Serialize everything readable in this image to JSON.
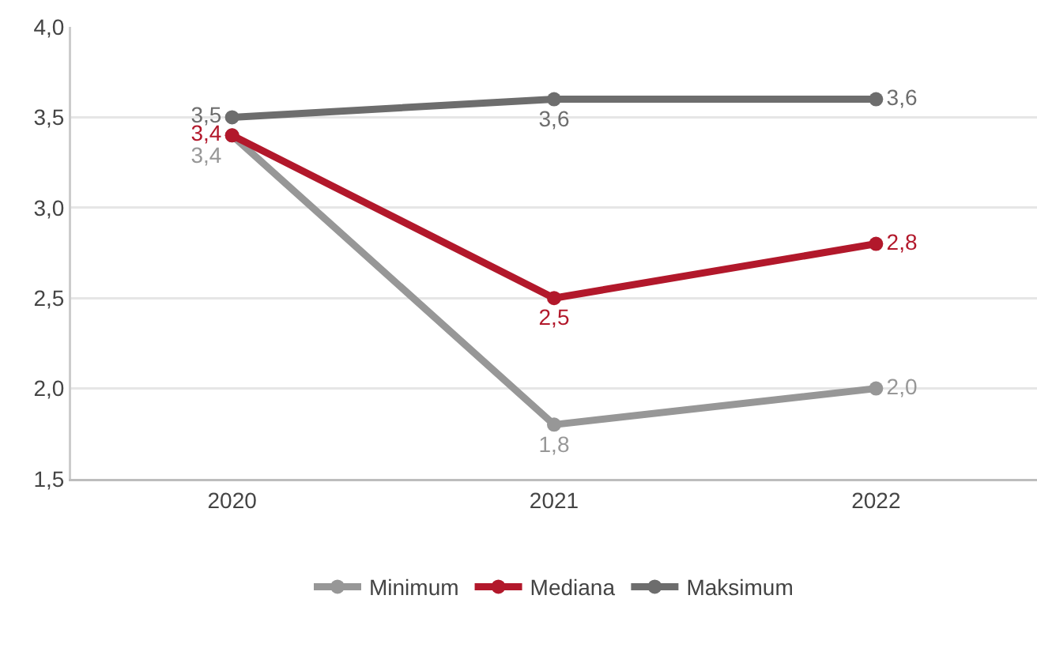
{
  "chart_data": {
    "type": "line",
    "categories": [
      "2020",
      "2021",
      "2022"
    ],
    "series": [
      {
        "name": "Minimum",
        "color": "#979797",
        "values": [
          3.4,
          1.8,
          2.0
        ],
        "value_labels": [
          "3,4",
          "1,8",
          "2,0"
        ]
      },
      {
        "name": "Mediana",
        "color": "#b2182b",
        "values": [
          3.4,
          2.5,
          2.8
        ],
        "value_labels": [
          "3,4",
          "2,5",
          "2,8"
        ]
      },
      {
        "name": "Maksimum",
        "color": "#6d6d6d",
        "values": [
          3.5,
          3.6,
          3.6
        ],
        "value_labels": [
          "3,5",
          "3,6",
          "3,6"
        ]
      }
    ],
    "ylim": [
      1.5,
      4.0
    ],
    "yticks": [
      {
        "value": 1.5,
        "label": "1,5"
      },
      {
        "value": 2.0,
        "label": "2,0"
      },
      {
        "value": 2.5,
        "label": "2,5"
      },
      {
        "value": 3.0,
        "label": "3,0"
      },
      {
        "value": 3.5,
        "label": "3,5"
      },
      {
        "value": 4.0,
        "label": "4,0"
      }
    ],
    "grid": "y",
    "legend": "bottom",
    "marker": "circle",
    "line_style": "solid"
  }
}
